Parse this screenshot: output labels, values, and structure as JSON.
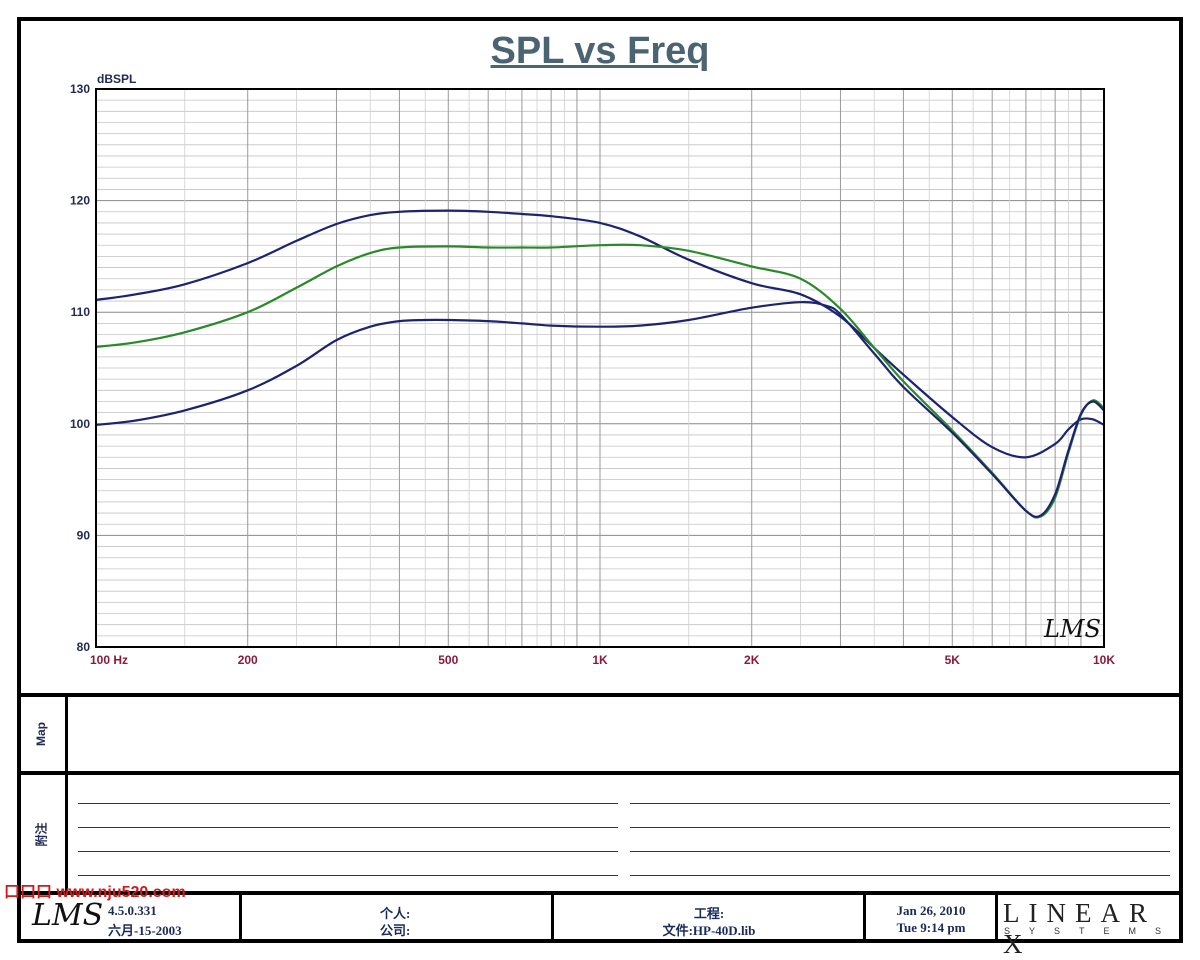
{
  "title": "SPL vs Freq",
  "chart_data": {
    "type": "line",
    "title": "SPL vs Freq",
    "ylabel": "dBSPL",
    "xlabel": "",
    "x_scale": "log",
    "xlim": [
      100,
      10000
    ],
    "ylim": [
      80,
      130
    ],
    "grid": true,
    "x_tick_values": [
      100,
      200,
      500,
      1000,
      2000,
      5000,
      10000
    ],
    "x_tick_labels": [
      "100  Hz",
      "200",
      "500",
      "1K",
      "2K",
      "5K",
      "10K"
    ],
    "y_ticks": [
      80,
      90,
      100,
      110,
      120,
      130
    ],
    "series": [
      {
        "color": "#1c2470",
        "x": [
          100,
          120,
          150,
          200,
          250,
          300,
          350,
          400,
          500,
          600,
          700,
          800,
          1000,
          1200,
          1500,
          2000,
          2500,
          3000,
          3500,
          4000,
          5000,
          6000,
          7000,
          8000,
          8500,
          9000,
          9500,
          10000
        ],
        "y": [
          111.1,
          111.6,
          112.5,
          114.4,
          116.4,
          117.9,
          118.7,
          119.0,
          119.1,
          119.0,
          118.8,
          118.6,
          118.0,
          116.8,
          114.7,
          112.6,
          111.6,
          109.6,
          106.8,
          104.4,
          100.6,
          97.9,
          97.0,
          98.2,
          99.5,
          100.4,
          100.4,
          99.9
        ]
      },
      {
        "color": "#2a8a2a",
        "x": [
          100,
          120,
          150,
          200,
          250,
          300,
          350,
          400,
          500,
          600,
          700,
          800,
          1000,
          1200,
          1500,
          2000,
          2500,
          3000,
          3500,
          4000,
          5000,
          6000,
          7000,
          7500,
          8000,
          8500,
          9000,
          9500,
          10000
        ],
        "y": [
          106.9,
          107.3,
          108.2,
          110.0,
          112.2,
          114.1,
          115.3,
          115.8,
          115.9,
          115.8,
          115.8,
          115.8,
          116.0,
          116.0,
          115.5,
          114.1,
          113.0,
          110.3,
          106.8,
          103.8,
          99.4,
          95.6,
          92.2,
          91.7,
          93.4,
          97.4,
          100.8,
          102.1,
          101.4
        ]
      },
      {
        "color": "#1c2470",
        "x": [
          100,
          120,
          150,
          200,
          250,
          300,
          350,
          400,
          450,
          500,
          600,
          700,
          800,
          1000,
          1200,
          1500,
          2000,
          2500,
          2800,
          3000,
          3500,
          4000,
          5000,
          6000,
          7000,
          7500,
          8000,
          8500,
          9000,
          9500,
          10000
        ],
        "y": [
          99.9,
          100.3,
          101.2,
          103.0,
          105.2,
          107.5,
          108.7,
          109.2,
          109.3,
          109.3,
          109.2,
          109.0,
          108.8,
          108.7,
          108.8,
          109.3,
          110.4,
          110.9,
          110.6,
          109.8,
          106.3,
          103.3,
          99.2,
          95.5,
          92.2,
          91.8,
          93.7,
          97.6,
          100.9,
          102.0,
          101.2
        ]
      }
    ]
  },
  "map_panel": {
    "label": "Map"
  },
  "notes_panel": {
    "label": "附注"
  },
  "footer": {
    "version": "4.5.0.331",
    "build_date": "六月-15-2003",
    "personal_label": "个人:",
    "company_label": "公司:",
    "project_label": "工程:",
    "file_label": "文件:HP-40D.lib",
    "date": "Jan 26, 2010",
    "time": "Tue  9:14 pm",
    "lms_logo": "LMS",
    "brand_main": "LINEAR X",
    "brand_sub": "SYSTEMS"
  },
  "watermark": "口口口 www.nju520.com",
  "plot_logo": "LMS"
}
